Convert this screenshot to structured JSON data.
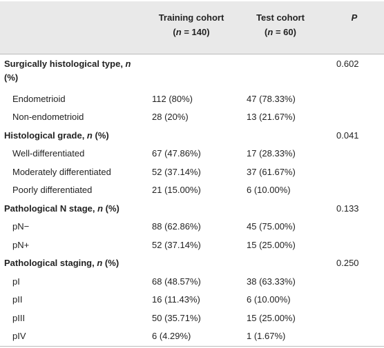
{
  "table": {
    "header": {
      "training": {
        "title": "Training cohort",
        "size": [
          "(",
          "n",
          " = 140)"
        ]
      },
      "test": {
        "title": "Test cohort",
        "size": [
          "(",
          "n",
          " = 60)"
        ]
      },
      "p": "P"
    },
    "sections": [
      {
        "label": [
          "Surgically histological type, ",
          "n",
          " (%)"
        ],
        "p": "0.602",
        "rows": [
          [
            "Endometrioid",
            "112 (80%)",
            "47 (78.33%)"
          ],
          [
            "Non-endometrioid",
            "28 (20%)",
            "13 (21.67%)"
          ]
        ]
      },
      {
        "label": [
          "Histological grade, ",
          "n",
          " (%)"
        ],
        "p": "0.041",
        "rows": [
          [
            "Well-differentiated",
            "67 (47.86%)",
            "17 (28.33%)"
          ],
          [
            "Moderately differentiated",
            "52 (37.14%)",
            "37 (61.67%)"
          ],
          [
            "Poorly differentiated",
            "21 (15.00%)",
            "6 (10.00%)"
          ]
        ]
      },
      {
        "label": [
          "Pathological N stage, ",
          "n",
          " (%)"
        ],
        "p": "0.133",
        "rows": [
          [
            "pN−",
            "88 (62.86%)",
            "45 (75.00%)"
          ],
          [
            "pN+",
            "52 (37.14%)",
            "15 (25.00%)"
          ]
        ]
      },
      {
        "label": [
          "Pathological staging, ",
          "n",
          " (%)"
        ],
        "p": "0.250",
        "rows": [
          [
            "pI",
            "68 (48.57%)",
            "38 (63.33%)"
          ],
          [
            "pII",
            "16 (11.43%)",
            "6 (10.00%)"
          ],
          [
            "pIII",
            "50 (35.71%)",
            "15 (25.00%)"
          ],
          [
            "pIV",
            "6 (4.29%)",
            "1 (1.67%)"
          ]
        ]
      }
    ]
  }
}
